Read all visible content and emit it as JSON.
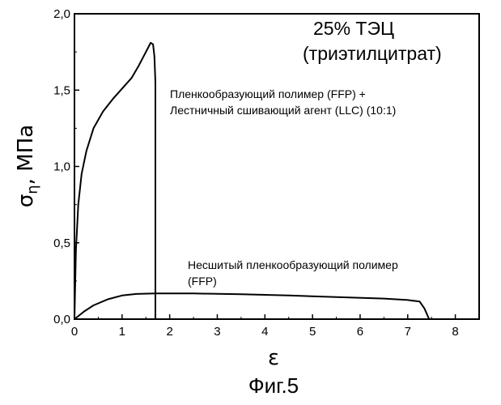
{
  "chart_data": {
    "type": "line",
    "corner_title": [
      "25% ТЭЦ",
      "(триэтилцитрат)"
    ],
    "xlabel": "ε",
    "ylabel_main": "σ",
    "ylabel_sub": "η",
    "ylabel_unit": ", МПа",
    "xlim": [
      0,
      8.5
    ],
    "ylim": [
      0,
      2.0
    ],
    "x_ticks": [
      0,
      1,
      2,
      3,
      4,
      5,
      6,
      7,
      8
    ],
    "y_ticks": [
      0.0,
      0.5,
      1.0,
      1.5,
      2.0
    ],
    "y_tick_labels": [
      "0,0",
      "0,5",
      "1,0",
      "1,5",
      "2,0"
    ],
    "grid": false,
    "series": [
      {
        "x": [
          0,
          0.03,
          0.08,
          0.15,
          0.25,
          0.4,
          0.6,
          0.8,
          1.0,
          1.2,
          1.35,
          1.45,
          1.55,
          1.6,
          1.65,
          1.68,
          1.7,
          1.7
        ],
        "y": [
          0,
          0.45,
          0.75,
          0.95,
          1.1,
          1.25,
          1.36,
          1.44,
          1.51,
          1.58,
          1.66,
          1.72,
          1.78,
          1.81,
          1.8,
          1.72,
          1.55,
          0
        ]
      },
      {
        "x": [
          0,
          0.2,
          0.4,
          0.7,
          1.0,
          1.3,
          1.7,
          2.5,
          3.5,
          4.5,
          5.5,
          6.5,
          7.0,
          7.25,
          7.35,
          7.45
        ],
        "y": [
          0,
          0.05,
          0.09,
          0.13,
          0.155,
          0.165,
          0.168,
          0.168,
          0.163,
          0.155,
          0.145,
          0.135,
          0.125,
          0.115,
          0.07,
          0.0
        ]
      }
    ],
    "annotations": [
      {
        "lines": [
          "Пленкообразующий полимер (FFP) +",
          "Лестничный сшивающий агент (LLC) (10:1)"
        ]
      },
      {
        "lines": [
          "Несшитый пленкообразующий полимер",
          "(FFP)"
        ]
      }
    ]
  },
  "caption": "Фиг.5"
}
